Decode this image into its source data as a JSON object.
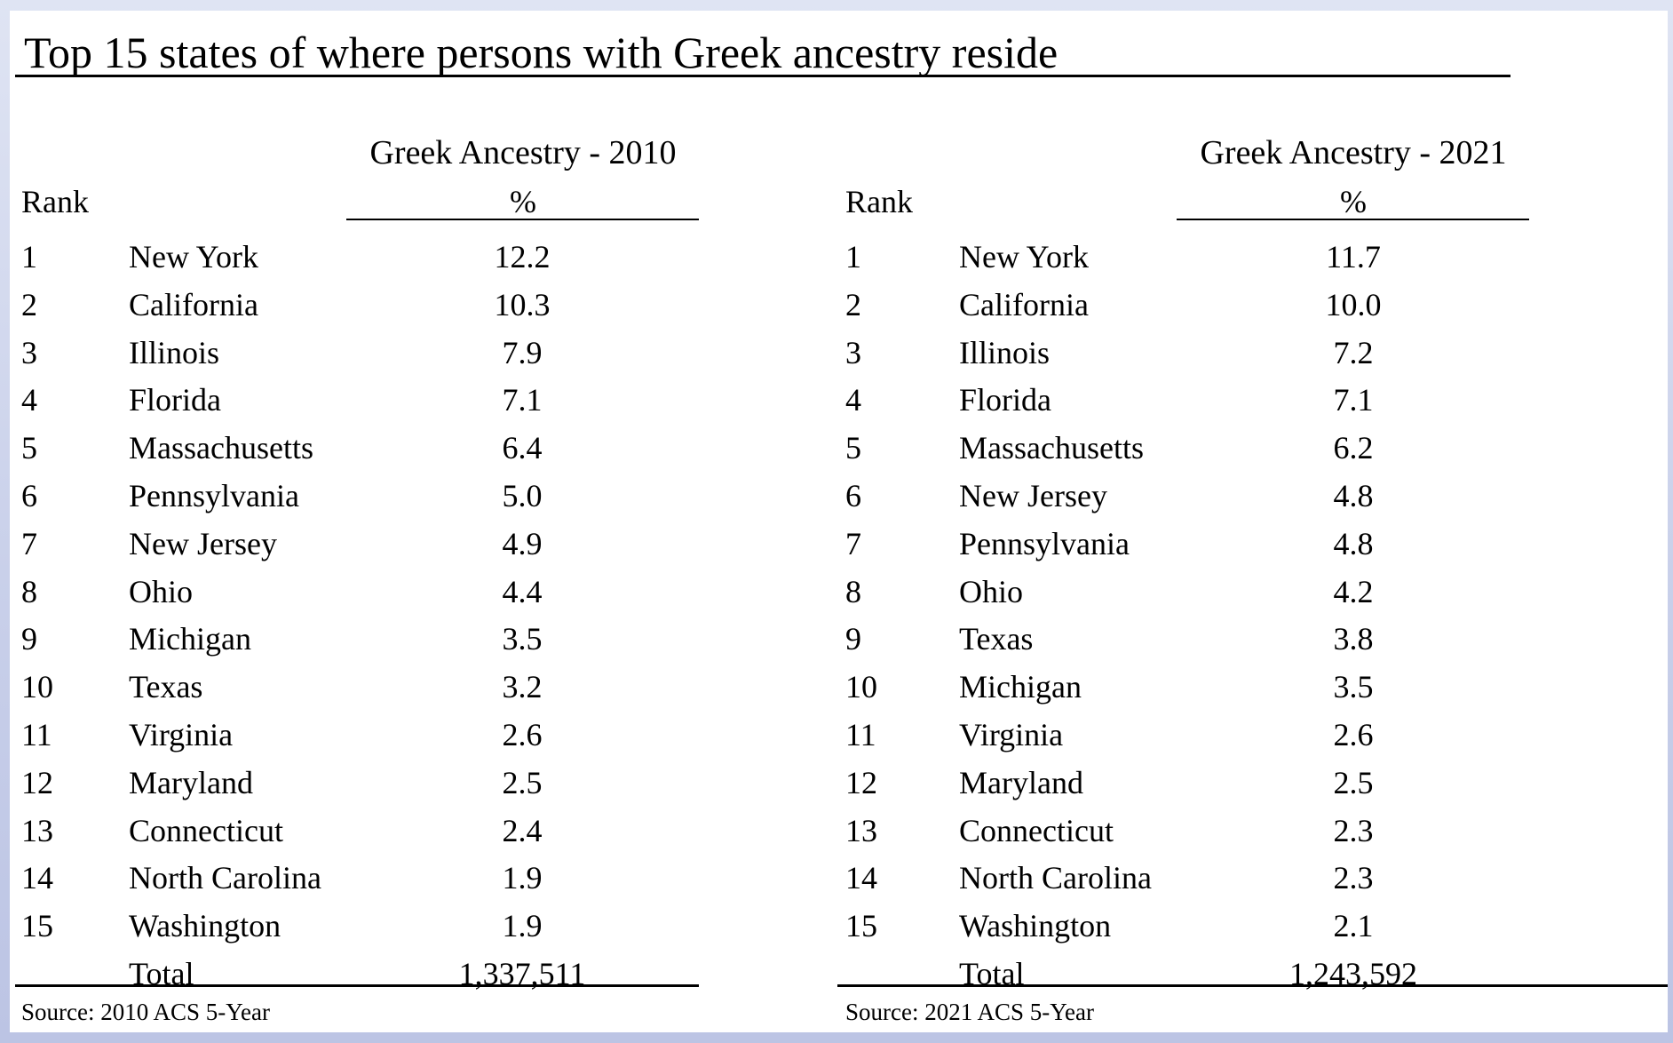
{
  "title": "Top 15 states of where persons with Greek ancestry reside",
  "tables": [
    {
      "header": "Greek Ancestry - 2010",
      "unit": "%",
      "rank_header": "Rank",
      "rows": [
        {
          "rank": "1",
          "state": "New York",
          "value": "12.2"
        },
        {
          "rank": "2",
          "state": "California",
          "value": "10.3"
        },
        {
          "rank": "3",
          "state": "Illinois",
          "value": "7.9"
        },
        {
          "rank": "4",
          "state": "Florida",
          "value": "7.1"
        },
        {
          "rank": "5",
          "state": "Massachusetts",
          "value": "6.4"
        },
        {
          "rank": "6",
          "state": "Pennsylvania",
          "value": "5.0"
        },
        {
          "rank": "7",
          "state": "New Jersey",
          "value": "4.9"
        },
        {
          "rank": "8",
          "state": "Ohio",
          "value": "4.4"
        },
        {
          "rank": "9",
          "state": "Michigan",
          "value": "3.5"
        },
        {
          "rank": "10",
          "state": "Texas",
          "value": "3.2"
        },
        {
          "rank": "11",
          "state": "Virginia",
          "value": "2.6"
        },
        {
          "rank": "12",
          "state": "Maryland",
          "value": "2.5"
        },
        {
          "rank": "13",
          "state": "Connecticut",
          "value": "2.4"
        },
        {
          "rank": "14",
          "state": "North Carolina",
          "value": "1.9"
        },
        {
          "rank": "15",
          "state": "Washington",
          "value": "1.9"
        }
      ],
      "total_label": "Total",
      "total_value": "1,337,511",
      "source": "Source: 2010 ACS 5-Year"
    },
    {
      "header": "Greek Ancestry - 2021",
      "unit": "%",
      "rank_header": "Rank",
      "rows": [
        {
          "rank": "1",
          "state": "New York",
          "value": "11.7"
        },
        {
          "rank": "2",
          "state": "California",
          "value": "10.0"
        },
        {
          "rank": "3",
          "state": "Illinois",
          "value": "7.2"
        },
        {
          "rank": "4",
          "state": "Florida",
          "value": "7.1"
        },
        {
          "rank": "5",
          "state": "Massachusetts",
          "value": "6.2"
        },
        {
          "rank": "6",
          "state": "New Jersey",
          "value": "4.8"
        },
        {
          "rank": "7",
          "state": "Pennsylvania",
          "value": "4.8"
        },
        {
          "rank": "8",
          "state": "Ohio",
          "value": "4.2"
        },
        {
          "rank": "9",
          "state": "Texas",
          "value": "3.8"
        },
        {
          "rank": "10",
          "state": "Michigan",
          "value": "3.5"
        },
        {
          "rank": "11",
          "state": "Virginia",
          "value": "2.6"
        },
        {
          "rank": "12",
          "state": "Maryland",
          "value": "2.5"
        },
        {
          "rank": "13",
          "state": "Connecticut",
          "value": "2.3"
        },
        {
          "rank": "14",
          "state": "North Carolina",
          "value": "2.3"
        },
        {
          "rank": "15",
          "state": "Washington",
          "value": "2.1"
        }
      ],
      "total_label": "Total",
      "total_value": "1,243,592",
      "source": "Source: 2021 ACS 5-Year"
    }
  ]
}
